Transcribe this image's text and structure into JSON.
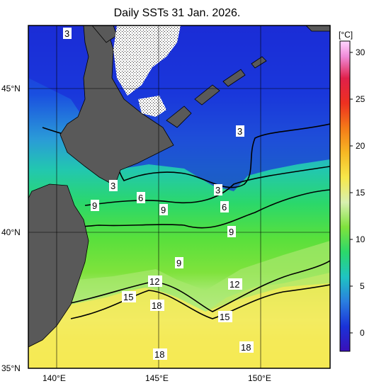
{
  "title": "Daily SSTs 31 Jan. 2026.",
  "colorbar": {
    "unit": "[°C]",
    "ticks": [
      "30",
      "25",
      "20",
      "15",
      "10",
      "5",
      "0"
    ],
    "range": [
      -2,
      31
    ]
  },
  "axes": {
    "lat_labels": [
      "45°N",
      "40°N",
      "35°N"
    ],
    "lon_labels": [
      "140°E",
      "145°E",
      "150°E"
    ]
  },
  "contour_labels": [
    "3",
    "3",
    "3",
    "3",
    "6",
    "6",
    "9",
    "9",
    "9",
    "9",
    "12",
    "12",
    "15",
    "15",
    "18",
    "18",
    "18"
  ],
  "colors": {
    "land": "#595959",
    "sea_ice": "#ffffff",
    "cold": "#1a1ad6",
    "warm": "#f5e94a"
  }
}
